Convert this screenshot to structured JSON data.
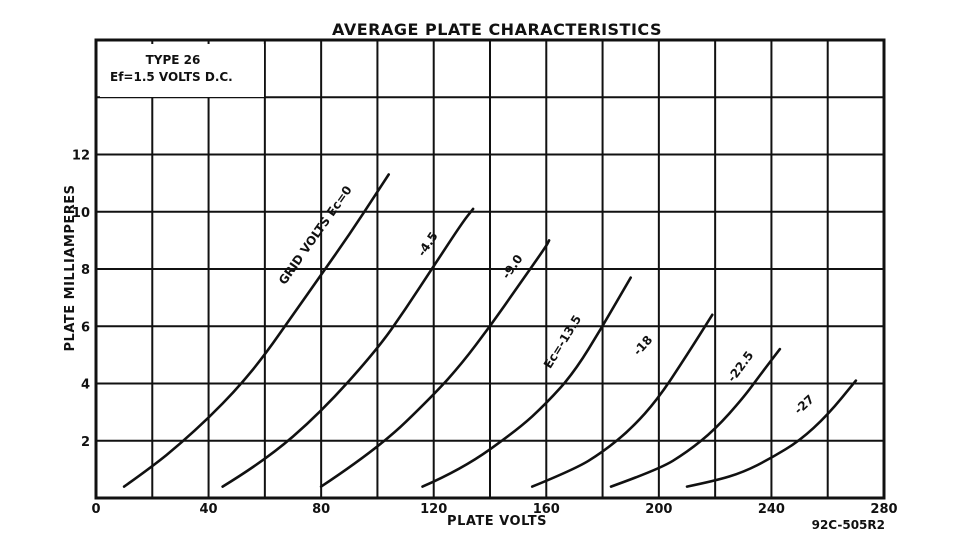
{
  "chart_data": {
    "type": "line",
    "title": "AVERAGE PLATE CHARACTERISTICS",
    "xlabel": "PLATE VOLTS",
    "ylabel": "PLATE MILLIAMPERES",
    "xlim": [
      0,
      280
    ],
    "ylim": [
      0,
      16
    ],
    "grid": true,
    "x_tick_labels": [
      "0",
      "40",
      "80",
      "120",
      "160",
      "200",
      "240",
      "280"
    ],
    "y_tick_labels": [
      "2",
      "4",
      "6",
      "8",
      "10",
      "12"
    ],
    "info_box": {
      "line1": "TYPE 26",
      "line2": "Ef=1.5 VOLTS D.C."
    },
    "figure_code": "92C-505R2",
    "series": [
      {
        "name": "GRID VOLTS Ec=0",
        "x": [
          10,
          20,
          30,
          40,
          50,
          60,
          70,
          80,
          90,
          100,
          104
        ],
        "y": [
          0.4,
          1.1,
          1.9,
          2.8,
          3.8,
          5.0,
          6.4,
          7.8,
          9.2,
          10.7,
          11.3
        ]
      },
      {
        "name": "-4.5",
        "x": [
          45,
          60,
          80,
          100,
          110,
          120,
          130,
          134
        ],
        "y": [
          0.4,
          1.3,
          3.0,
          5.2,
          6.6,
          8.1,
          9.6,
          10.1
        ]
      },
      {
        "name": "-9.0",
        "x": [
          80,
          100,
          120,
          130,
          140,
          150,
          160,
          161
        ],
        "y": [
          0.4,
          1.7,
          3.6,
          4.7,
          6.0,
          7.4,
          8.8,
          9.0
        ]
      },
      {
        "name": "Ec=-13.5",
        "x": [
          116,
          130,
          150,
          160,
          170,
          180,
          190
        ],
        "y": [
          0.4,
          1.0,
          2.4,
          3.3,
          4.4,
          6.0,
          7.7
        ]
      },
      {
        "name": "-18",
        "x": [
          155,
          170,
          180,
          190,
          200,
          210,
          219
        ],
        "y": [
          0.4,
          1.0,
          1.6,
          2.4,
          3.5,
          5.0,
          6.4
        ]
      },
      {
        "name": "-22.5",
        "x": [
          183,
          200,
          210,
          220,
          230,
          236,
          243
        ],
        "y": [
          0.4,
          1.0,
          1.6,
          2.4,
          3.5,
          4.3,
          5.2
        ]
      },
      {
        "name": "-27",
        "x": [
          210,
          220,
          230,
          240,
          250,
          260,
          270
        ],
        "y": [
          0.4,
          0.6,
          0.9,
          1.4,
          2.0,
          2.9,
          4.1
        ]
      }
    ]
  }
}
